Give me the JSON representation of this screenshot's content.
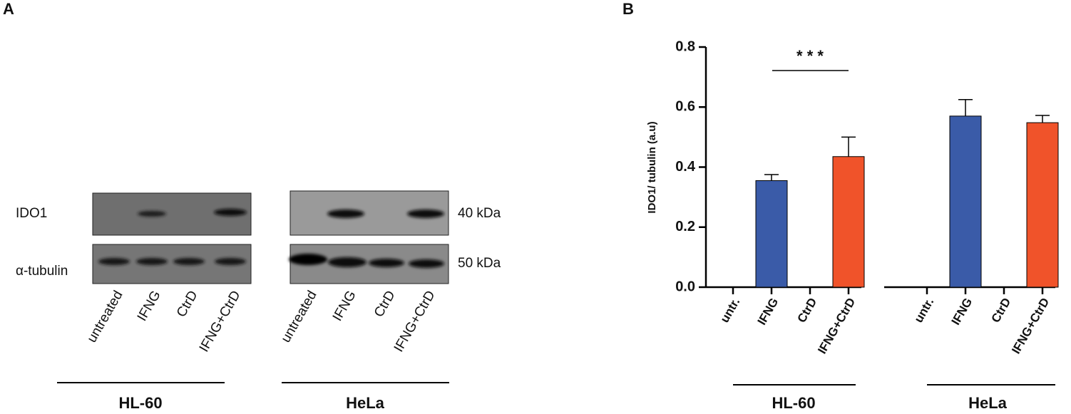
{
  "panel_a": {
    "label": "A",
    "rows": [
      "IDO1",
      "α-tubulin"
    ],
    "sizes": [
      "40 kDa",
      "50 kDa"
    ],
    "lanes": [
      [
        "untreated",
        "IFNG",
        "CtrD",
        "IFNG+CtrD"
      ],
      [
        "untreated",
        "IFNG",
        "CtrD",
        "IFNG+CtrD"
      ]
    ],
    "groups": [
      "HL-60",
      "HeLa"
    ]
  },
  "chart_data": {
    "type": "bar",
    "panel_label": "B",
    "y_label": "IDO1/ tubulin (a.u)",
    "categories": [
      "untr.",
      "IFNG",
      "CtrD",
      "IFNG+CtrD",
      "untr.",
      "IFNG",
      "CtrD",
      "IFNG+CtrD"
    ],
    "groups": [
      "HL-60",
      "HeLa"
    ],
    "values": [
      0,
      0.355,
      0,
      0.435,
      0,
      0.57,
      0,
      0.548
    ],
    "errors": [
      0,
      0.02,
      0,
      0.065,
      0,
      0.055,
      0,
      0.024
    ],
    "colors": [
      "#3a5ba8",
      "#3a5ba8",
      "#f0532a",
      "#f0532a",
      "#3a5ba8",
      "#3a5ba8",
      "#f0532a",
      "#f0532a"
    ],
    "annotation": "* * *",
    "ylim": [
      0,
      0.8
    ],
    "yticks": [
      {
        "value": 0,
        "label": "0.0"
      },
      0.2,
      0.4,
      0.6,
      0.8
    ]
  }
}
